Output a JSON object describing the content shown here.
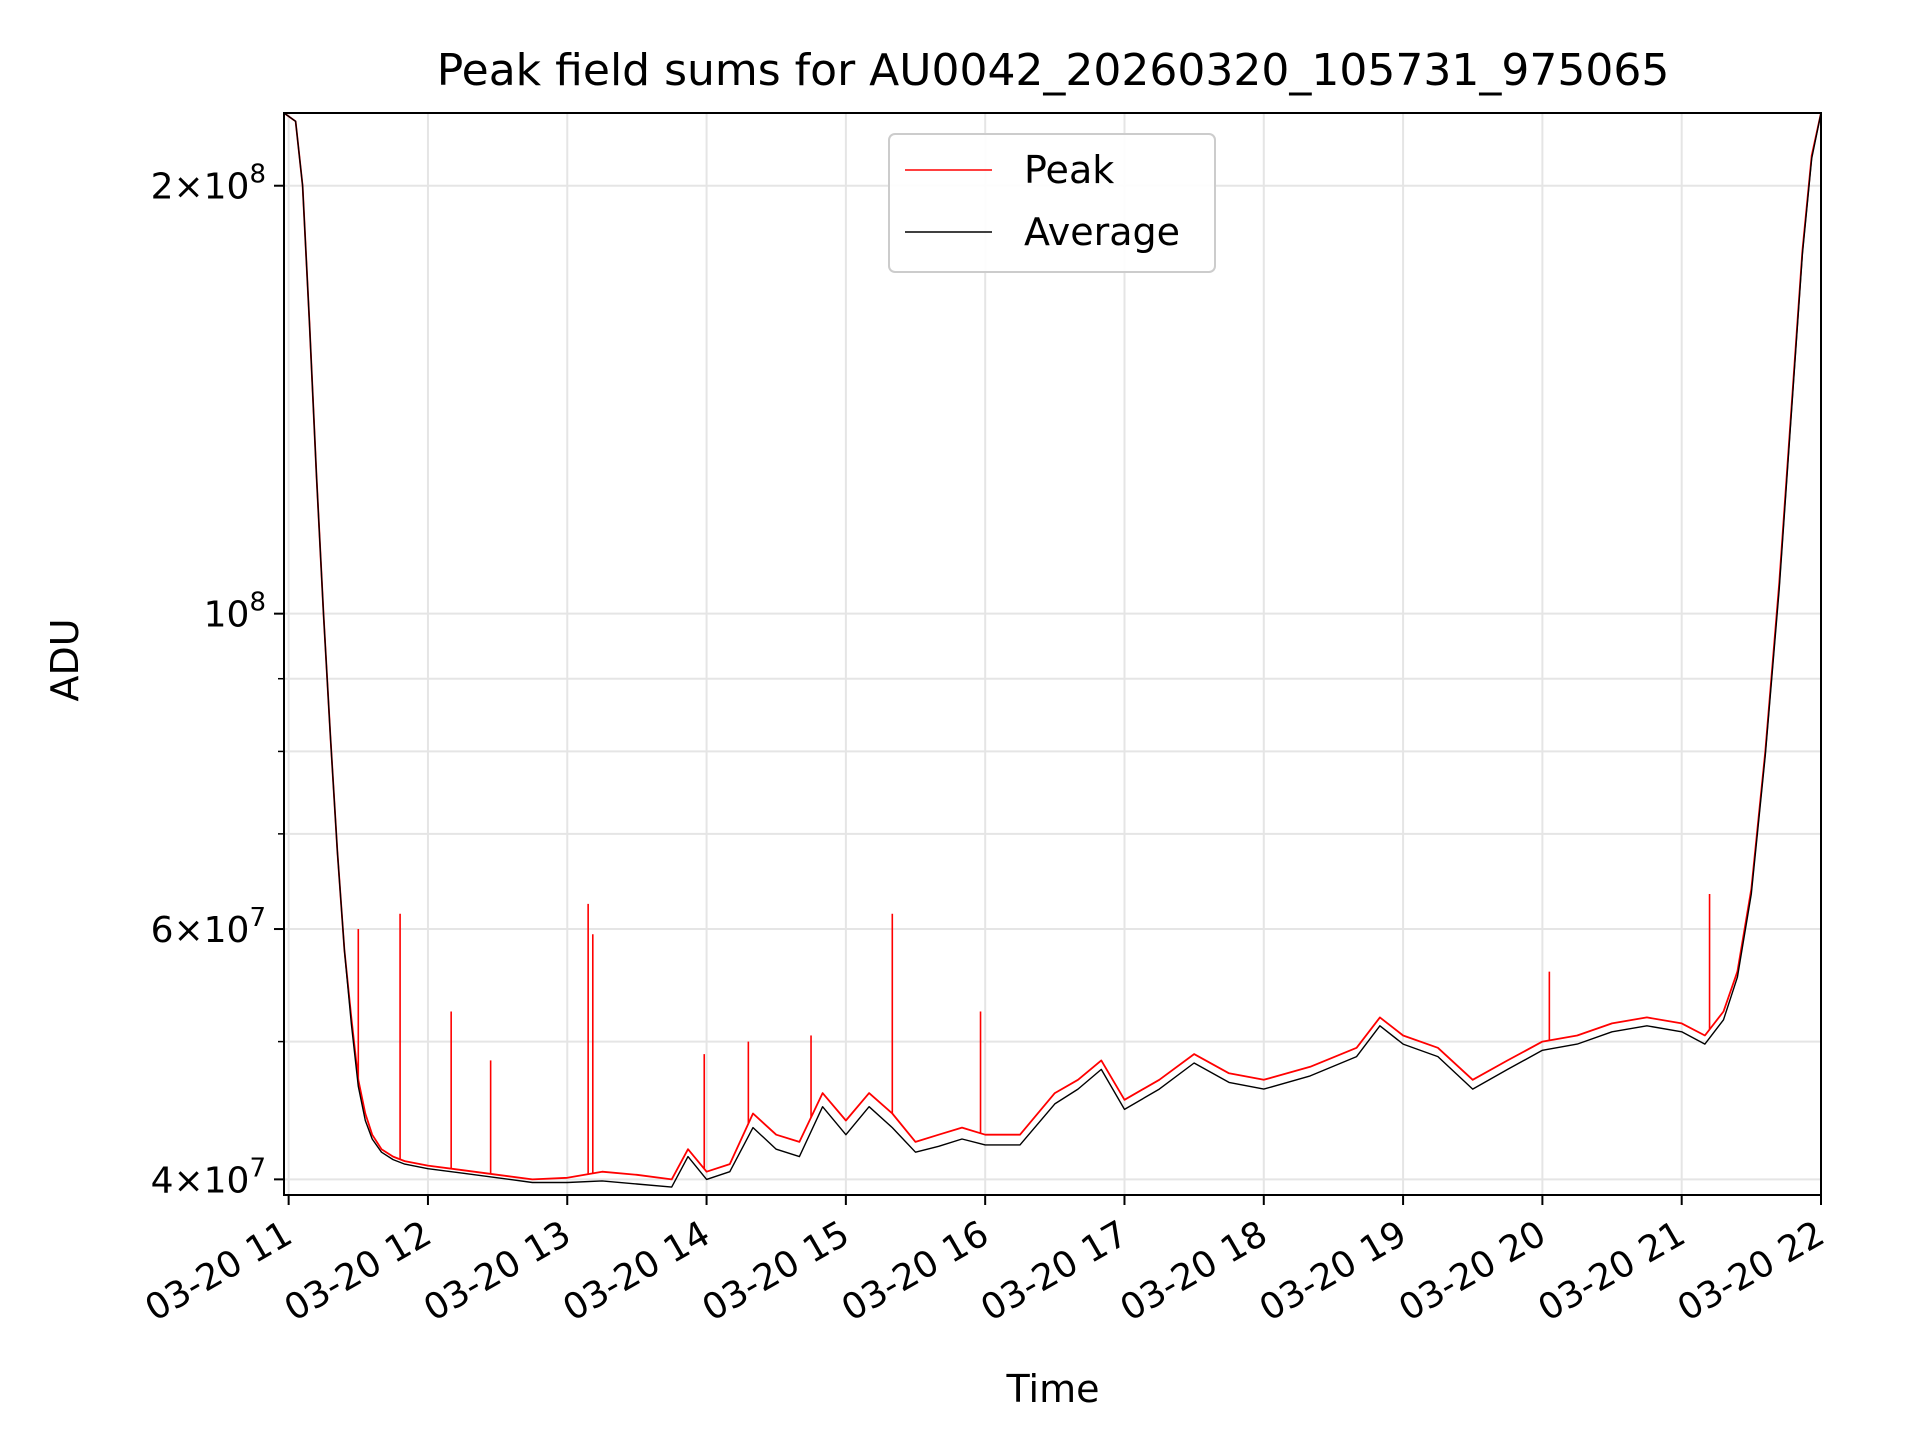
{
  "chart_data": {
    "type": "line",
    "title": "Peak field sums for AU0042_20260320_105731_975065",
    "xlabel": "Time",
    "ylabel": "ADU",
    "yscale": "log",
    "grid": true,
    "legend_placement": "top-center",
    "xlim": [
      "2026-03-20 10:58",
      "2026-03-20 22:00"
    ],
    "ylim": [
      39000000,
      225000000
    ],
    "x_ticks": [
      {
        "value": "2026-03-20 11:00",
        "label": "03-20 11"
      },
      {
        "value": "2026-03-20 12:00",
        "label": "03-20 12"
      },
      {
        "value": "2026-03-20 13:00",
        "label": "03-20 13"
      },
      {
        "value": "2026-03-20 14:00",
        "label": "03-20 14"
      },
      {
        "value": "2026-03-20 15:00",
        "label": "03-20 15"
      },
      {
        "value": "2026-03-20 16:00",
        "label": "03-20 16"
      },
      {
        "value": "2026-03-20 17:00",
        "label": "03-20 17"
      },
      {
        "value": "2026-03-20 18:00",
        "label": "03-20 18"
      },
      {
        "value": "2026-03-20 19:00",
        "label": "03-20 19"
      },
      {
        "value": "2026-03-20 20:00",
        "label": "03-20 20"
      },
      {
        "value": "2026-03-20 21:00",
        "label": "03-20 21"
      },
      {
        "value": "2026-03-20 22:00",
        "label": "03-20 22"
      }
    ],
    "y_ticks": [
      {
        "value": 40000000,
        "mant": "4",
        "exp": "7"
      },
      {
        "value": 60000000,
        "mant": "6",
        "exp": "7"
      },
      {
        "value": 100000000,
        "mant": "",
        "exp": "8"
      },
      {
        "value": 200000000,
        "mant": "2",
        "exp": "8"
      }
    ],
    "y_minor_ticks": [
      50000000,
      70000000,
      80000000,
      90000000
    ],
    "series": [
      {
        "name": "Peak",
        "color": "#ff0000",
        "points": [
          [
            "2026-03-20 10:58",
            225000000
          ],
          [
            "2026-03-20 11:03",
            222000000
          ],
          [
            "2026-03-20 11:06",
            200000000
          ],
          [
            "2026-03-20 11:09",
            160000000
          ],
          [
            "2026-03-20 11:12",
            125000000
          ],
          [
            "2026-03-20 11:15",
            100000000
          ],
          [
            "2026-03-20 11:18",
            82000000
          ],
          [
            "2026-03-20 11:21",
            68000000
          ],
          [
            "2026-03-20 11:24",
            58000000
          ],
          [
            "2026-03-20 11:27",
            52000000
          ],
          [
            "2026-03-20 11:30",
            47000000
          ],
          [
            "2026-03-20 11:33",
            44500000
          ],
          [
            "2026-03-20 11:36",
            43000000
          ],
          [
            "2026-03-20 11:40",
            42000000
          ],
          [
            "2026-03-20 11:45",
            41500000
          ],
          [
            "2026-03-20 11:50",
            41200000
          ],
          [
            "2026-03-20 12:00",
            40900000
          ],
          [
            "2026-03-20 12:15",
            40600000
          ],
          [
            "2026-03-20 12:30",
            40300000
          ],
          [
            "2026-03-20 12:45",
            40000000
          ],
          [
            "2026-03-20 13:00",
            40100000
          ],
          [
            "2026-03-20 13:15",
            40500000
          ],
          [
            "2026-03-20 13:30",
            40300000
          ],
          [
            "2026-03-20 13:45",
            40000000
          ],
          [
            "2026-03-20 13:52",
            42000000
          ],
          [
            "2026-03-20 14:00",
            40500000
          ],
          [
            "2026-03-20 14:10",
            41000000
          ],
          [
            "2026-03-20 14:20",
            44500000
          ],
          [
            "2026-03-20 14:30",
            43000000
          ],
          [
            "2026-03-20 14:40",
            42500000
          ],
          [
            "2026-03-20 14:50",
            46000000
          ],
          [
            "2026-03-20 15:00",
            44000000
          ],
          [
            "2026-03-20 15:10",
            46000000
          ],
          [
            "2026-03-20 15:20",
            44500000
          ],
          [
            "2026-03-20 15:30",
            42500000
          ],
          [
            "2026-03-20 15:40",
            43000000
          ],
          [
            "2026-03-20 15:50",
            43500000
          ],
          [
            "2026-03-20 16:00",
            43000000
          ],
          [
            "2026-03-20 16:15",
            43000000
          ],
          [
            "2026-03-20 16:30",
            46000000
          ],
          [
            "2026-03-20 16:40",
            47000000
          ],
          [
            "2026-03-20 16:50",
            48500000
          ],
          [
            "2026-03-20 17:00",
            45500000
          ],
          [
            "2026-03-20 17:15",
            47000000
          ],
          [
            "2026-03-20 17:30",
            49000000
          ],
          [
            "2026-03-20 17:45",
            47500000
          ],
          [
            "2026-03-20 18:00",
            47000000
          ],
          [
            "2026-03-20 18:20",
            48000000
          ],
          [
            "2026-03-20 18:40",
            49500000
          ],
          [
            "2026-03-20 18:50",
            52000000
          ],
          [
            "2026-03-20 19:00",
            50500000
          ],
          [
            "2026-03-20 19:15",
            49500000
          ],
          [
            "2026-03-20 19:30",
            47000000
          ],
          [
            "2026-03-20 19:45",
            48500000
          ],
          [
            "2026-03-20 20:00",
            50000000
          ],
          [
            "2026-03-20 20:15",
            50500000
          ],
          [
            "2026-03-20 20:30",
            51500000
          ],
          [
            "2026-03-20 20:45",
            52000000
          ],
          [
            "2026-03-20 21:00",
            51500000
          ],
          [
            "2026-03-20 21:10",
            50500000
          ],
          [
            "2026-03-20 21:18",
            52500000
          ],
          [
            "2026-03-20 21:24",
            56000000
          ],
          [
            "2026-03-20 21:30",
            64000000
          ],
          [
            "2026-03-20 21:36",
            80000000
          ],
          [
            "2026-03-20 21:42",
            105000000
          ],
          [
            "2026-03-20 21:48",
            145000000
          ],
          [
            "2026-03-20 21:52",
            180000000
          ],
          [
            "2026-03-20 21:56",
            210000000
          ],
          [
            "2026-03-20 22:00",
            225000000
          ]
        ],
        "spikes": [
          [
            "2026-03-20 11:30",
            60000000
          ],
          [
            "2026-03-20 11:48",
            61500000
          ],
          [
            "2026-03-20 12:10",
            52500000
          ],
          [
            "2026-03-20 12:27",
            48500000
          ],
          [
            "2026-03-20 13:09",
            62500000
          ],
          [
            "2026-03-20 13:11",
            59500000
          ],
          [
            "2026-03-20 13:59",
            49000000
          ],
          [
            "2026-03-20 14:18",
            50000000
          ],
          [
            "2026-03-20 14:45",
            50500000
          ],
          [
            "2026-03-20 15:20",
            61500000
          ],
          [
            "2026-03-20 15:58",
            52500000
          ],
          [
            "2026-03-20 21:12",
            63500000
          ],
          [
            "2026-03-20 20:03",
            56000000
          ]
        ]
      },
      {
        "name": "Average",
        "color": "#000000",
        "points": [
          [
            "2026-03-20 10:58",
            225000000
          ],
          [
            "2026-03-20 11:03",
            222000000
          ],
          [
            "2026-03-20 11:06",
            200000000
          ],
          [
            "2026-03-20 11:09",
            160000000
          ],
          [
            "2026-03-20 11:12",
            125000000
          ],
          [
            "2026-03-20 11:15",
            100000000
          ],
          [
            "2026-03-20 11:18",
            82000000
          ],
          [
            "2026-03-20 11:21",
            68000000
          ],
          [
            "2026-03-20 11:24",
            58000000
          ],
          [
            "2026-03-20 11:27",
            51500000
          ],
          [
            "2026-03-20 11:30",
            46500000
          ],
          [
            "2026-03-20 11:33",
            44000000
          ],
          [
            "2026-03-20 11:36",
            42700000
          ],
          [
            "2026-03-20 11:40",
            41800000
          ],
          [
            "2026-03-20 11:45",
            41300000
          ],
          [
            "2026-03-20 11:50",
            41000000
          ],
          [
            "2026-03-20 12:00",
            40700000
          ],
          [
            "2026-03-20 12:15",
            40400000
          ],
          [
            "2026-03-20 12:30",
            40100000
          ],
          [
            "2026-03-20 12:45",
            39800000
          ],
          [
            "2026-03-20 13:00",
            39800000
          ],
          [
            "2026-03-20 13:15",
            39900000
          ],
          [
            "2026-03-20 13:30",
            39700000
          ],
          [
            "2026-03-20 13:45",
            39500000
          ],
          [
            "2026-03-20 13:52",
            41500000
          ],
          [
            "2026-03-20 14:00",
            40000000
          ],
          [
            "2026-03-20 14:10",
            40500000
          ],
          [
            "2026-03-20 14:20",
            43500000
          ],
          [
            "2026-03-20 14:30",
            42000000
          ],
          [
            "2026-03-20 14:40",
            41500000
          ],
          [
            "2026-03-20 14:50",
            45000000
          ],
          [
            "2026-03-20 15:00",
            43000000
          ],
          [
            "2026-03-20 15:10",
            45000000
          ],
          [
            "2026-03-20 15:20",
            43500000
          ],
          [
            "2026-03-20 15:30",
            41800000
          ],
          [
            "2026-03-20 15:40",
            42200000
          ],
          [
            "2026-03-20 15:50",
            42700000
          ],
          [
            "2026-03-20 16:00",
            42300000
          ],
          [
            "2026-03-20 16:15",
            42300000
          ],
          [
            "2026-03-20 16:30",
            45200000
          ],
          [
            "2026-03-20 16:40",
            46300000
          ],
          [
            "2026-03-20 16:50",
            47800000
          ],
          [
            "2026-03-20 17:00",
            44800000
          ],
          [
            "2026-03-20 17:15",
            46300000
          ],
          [
            "2026-03-20 17:30",
            48300000
          ],
          [
            "2026-03-20 17:45",
            46800000
          ],
          [
            "2026-03-20 18:00",
            46300000
          ],
          [
            "2026-03-20 18:20",
            47300000
          ],
          [
            "2026-03-20 18:40",
            48800000
          ],
          [
            "2026-03-20 18:50",
            51300000
          ],
          [
            "2026-03-20 19:00",
            49800000
          ],
          [
            "2026-03-20 19:15",
            48800000
          ],
          [
            "2026-03-20 19:30",
            46300000
          ],
          [
            "2026-03-20 19:45",
            47800000
          ],
          [
            "2026-03-20 20:00",
            49300000
          ],
          [
            "2026-03-20 20:15",
            49800000
          ],
          [
            "2026-03-20 20:30",
            50800000
          ],
          [
            "2026-03-20 20:45",
            51300000
          ],
          [
            "2026-03-20 21:00",
            50800000
          ],
          [
            "2026-03-20 21:10",
            49800000
          ],
          [
            "2026-03-20 21:18",
            51800000
          ],
          [
            "2026-03-20 21:24",
            55500000
          ],
          [
            "2026-03-20 21:30",
            63500000
          ],
          [
            "2026-03-20 21:36",
            79500000
          ],
          [
            "2026-03-20 21:42",
            104000000
          ],
          [
            "2026-03-20 21:48",
            144000000
          ],
          [
            "2026-03-20 21:52",
            179000000
          ],
          [
            "2026-03-20 21:56",
            209000000
          ],
          [
            "2026-03-20 22:00",
            225000000
          ]
        ]
      }
    ]
  }
}
